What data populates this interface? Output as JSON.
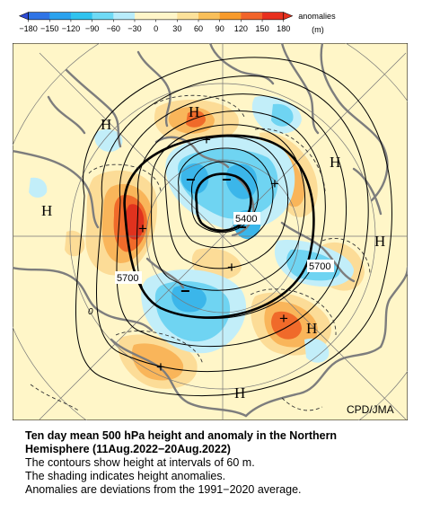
{
  "colorbar": {
    "ticks": [
      "−180",
      "−150",
      "−120",
      "−90",
      "−60",
      "−30",
      "0",
      "30",
      "60",
      "90",
      "120",
      "150",
      "180"
    ],
    "unit_label": "anomalies",
    "unit": "(m)",
    "colors": [
      "#2f4bd6",
      "#2f74e6",
      "#2aa2ee",
      "#30c3ef",
      "#6fdaf5",
      "#b8ecfb",
      "#fff5c8",
      "#fff5c8",
      "#fce19a",
      "#f9bf5a",
      "#f79a2c",
      "#f1642a",
      "#e8301e"
    ]
  },
  "map": {
    "credit": "CPD/JMA",
    "contour_labels": [
      "5400",
      "5700",
      "5700"
    ],
    "high_markers": [
      "H",
      "H",
      "H",
      "H",
      "H",
      "H",
      "H"
    ],
    "plus_markers": [
      "+",
      "+",
      "+",
      "+",
      "+",
      "+"
    ],
    "minus_markers": [
      "−",
      "−",
      "−",
      "−"
    ],
    "misc_label": "0",
    "colors": {
      "background": "#fff6c8",
      "positive_light": "#fcdc97",
      "positive_mid": "#f9b55a",
      "positive_strong": "#f06a2a",
      "positive_max": "#e0321e",
      "negative_light": "#c2eef9",
      "negative_mid": "#6fd4f2",
      "negative_strong": "#3bb6ea",
      "land": "#7d7d7d"
    }
  },
  "caption": {
    "title_line1": "Ten day mean 500 hPa height and anomaly in the Northern",
    "title_line2": "Hemisphere (11Aug.2022−20Aug.2022)",
    "line1": "The contours show height at intervals of 60 m.",
    "line2": "The shading indicates height anomalies.",
    "line3": "Anomalies are deviations from the 1991−2020 average."
  }
}
